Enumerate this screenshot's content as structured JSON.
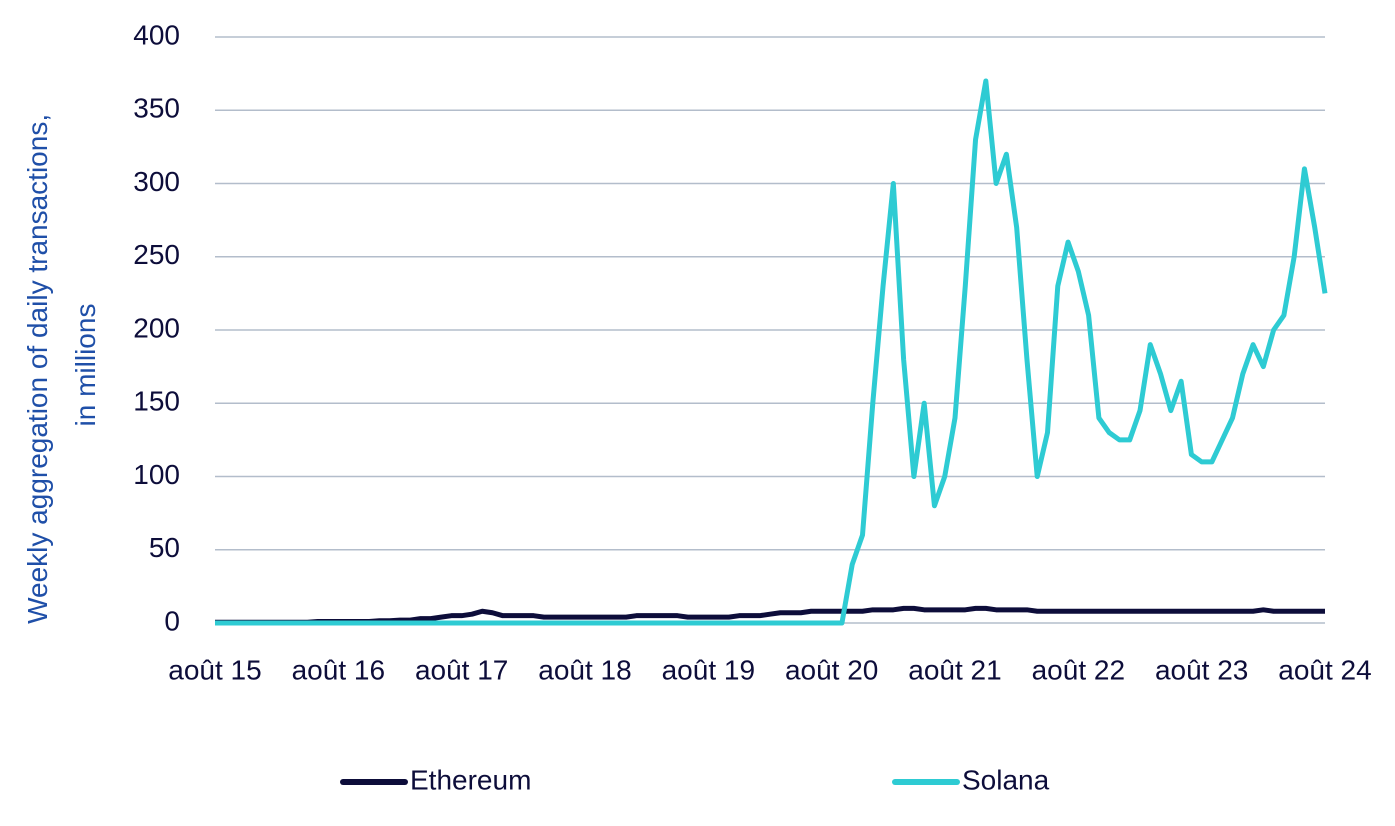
{
  "chart_data": {
    "type": "line",
    "y_label": [
      "Weekly aggregation of daily transactions,",
      "in millions"
    ],
    "categories": [
      "août 15",
      null,
      null,
      null,
      null,
      null,
      null,
      null,
      null,
      null,
      null,
      null,
      "août 16",
      null,
      null,
      null,
      null,
      null,
      null,
      null,
      null,
      null,
      null,
      null,
      "août 17",
      null,
      null,
      null,
      null,
      null,
      null,
      null,
      null,
      null,
      null,
      null,
      "août 18",
      null,
      null,
      null,
      null,
      null,
      null,
      null,
      null,
      null,
      null,
      null,
      "août 19",
      null,
      null,
      null,
      null,
      null,
      null,
      null,
      null,
      null,
      null,
      null,
      "août 20",
      null,
      null,
      null,
      null,
      null,
      null,
      null,
      null,
      null,
      null,
      null,
      "août 21",
      null,
      null,
      null,
      null,
      null,
      null,
      null,
      null,
      null,
      null,
      null,
      "août 22",
      null,
      null,
      null,
      null,
      null,
      null,
      null,
      null,
      null,
      null,
      null,
      "août 23",
      null,
      null,
      null,
      null,
      null,
      null,
      null,
      null,
      null,
      null,
      null,
      "août 24"
    ],
    "series": [
      {
        "name": "Ethereum",
        "color": "#0d0d3a",
        "values": [
          0.5,
          0.5,
          0.5,
          0.5,
          0.5,
          0.5,
          0.5,
          0.5,
          0.5,
          0.5,
          1,
          1,
          1,
          1,
          1,
          1,
          1.5,
          1.5,
          2,
          2,
          3,
          3,
          4,
          5,
          5,
          6,
          8,
          7,
          5,
          5,
          5,
          5,
          4,
          4,
          4,
          4,
          4,
          4,
          4,
          4,
          4,
          5,
          5,
          5,
          5,
          5,
          4,
          4,
          4,
          4,
          4,
          5,
          5,
          5,
          6,
          7,
          7,
          7,
          8,
          8,
          8,
          8,
          8,
          8,
          9,
          9,
          9,
          10,
          10,
          9,
          9,
          9,
          9,
          9,
          10,
          10,
          9,
          9,
          9,
          9,
          8,
          8,
          8,
          8,
          8,
          8,
          8,
          8,
          8,
          8,
          8,
          8,
          8,
          8,
          8,
          8,
          8,
          8,
          8,
          8,
          8,
          8,
          9,
          8,
          8,
          8,
          8,
          8,
          8
        ]
      },
      {
        "name": "Solana",
        "color": "#2ecbd3",
        "values": [
          0,
          0,
          0,
          0,
          0,
          0,
          0,
          0,
          0,
          0,
          0,
          0,
          0,
          0,
          0,
          0,
          0,
          0,
          0,
          0,
          0,
          0,
          0,
          0,
          0,
          0,
          0,
          0,
          0,
          0,
          0,
          0,
          0,
          0,
          0,
          0,
          0,
          0,
          0,
          0,
          0,
          0,
          0,
          0,
          0,
          0,
          0,
          0,
          0,
          0,
          0,
          0,
          0,
          0,
          0,
          0,
          0,
          0,
          0,
          0,
          0,
          0,
          40,
          60,
          150,
          230,
          300,
          180,
          100,
          150,
          80,
          100,
          140,
          230,
          330,
          370,
          300,
          320,
          270,
          180,
          100,
          130,
          230,
          260,
          240,
          210,
          140,
          130,
          125,
          125,
          145,
          190,
          170,
          145,
          165,
          115,
          110,
          110,
          125,
          140,
          170,
          190,
          175,
          200,
          210,
          250,
          310,
          270,
          225
        ]
      }
    ],
    "ylim": [
      0,
      400
    ],
    "yticks": [
      0,
      50,
      100,
      150,
      200,
      250,
      300,
      350,
      400
    ],
    "grid": true
  }
}
